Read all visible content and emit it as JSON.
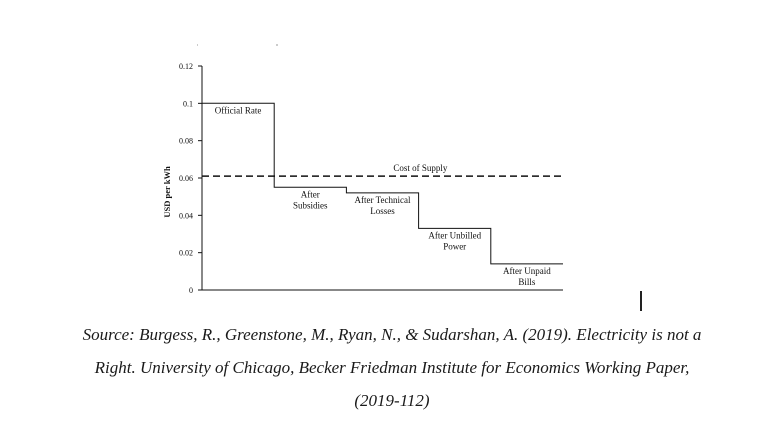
{
  "chart_data": {
    "type": "line",
    "ylabel": "USD per kWh",
    "xlabel": "",
    "ylim": [
      0,
      0.12
    ],
    "yticks": [
      "0",
      "0.02",
      "0.04",
      "0.06",
      "0.08",
      "0.1",
      "0.12"
    ],
    "steps": [
      {
        "label_lines": [
          "Official Rate"
        ],
        "value": 0.1
      },
      {
        "label_lines": [
          "After",
          "Subsidies"
        ],
        "value": 0.055
      },
      {
        "label_lines": [
          "After Technical",
          "Losses"
        ],
        "value": 0.052
      },
      {
        "label_lines": [
          "After Unbilled",
          "Power"
        ],
        "value": 0.033
      },
      {
        "label_lines": [
          "After Unpaid",
          "Bills"
        ],
        "value": 0.014
      }
    ],
    "reference_line": {
      "label": "Cost of Supply",
      "value": 0.061,
      "style": "dashed"
    },
    "grid": false,
    "legend": "none"
  },
  "caption": {
    "lines": [
      "Source: Burgess, R., Greenstone, M., Ryan, N., & Sudarshan, A. (2019). Electricity is not a",
      "Right. University of Chicago, Becker Friedman Institute for Economics Working Paper,",
      "(2019-112)"
    ]
  }
}
